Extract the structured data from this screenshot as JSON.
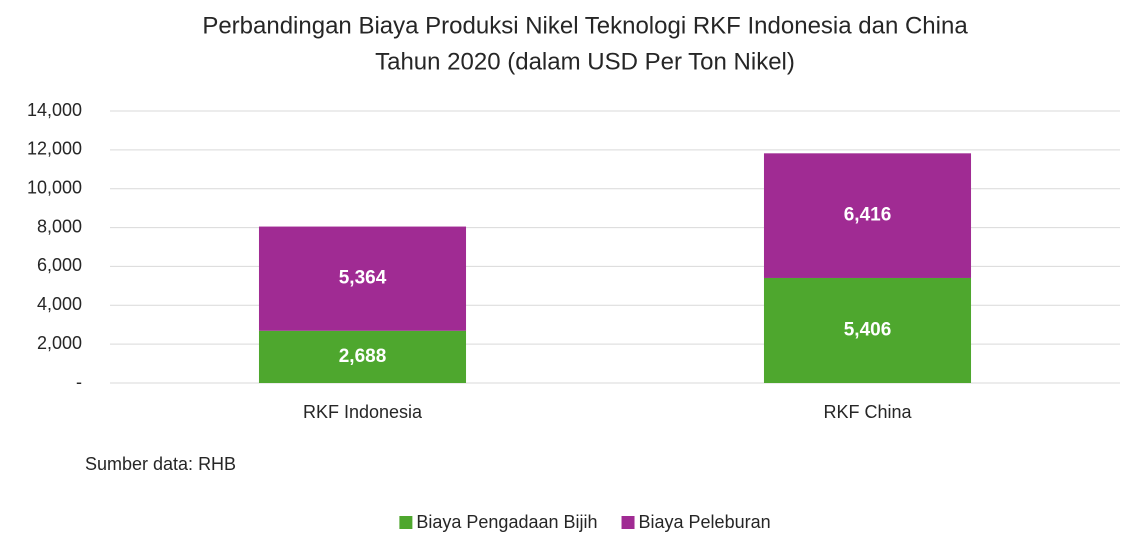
{
  "chart_data": {
    "type": "stacked_bar",
    "title": [
      "Perbandingan Biaya Produksi Nikel Teknologi RKF Indonesia dan China",
      "Tahun 2020 (dalam USD Per Ton Nikel)"
    ],
    "categories": [
      "RKF Indonesia",
      "RKF China"
    ],
    "series": [
      {
        "name": "Biaya Pengadaan Bijih",
        "color": "#4ea72e",
        "values": [
          2688,
          5406
        ],
        "value_labels": [
          "2,688",
          "5,406"
        ]
      },
      {
        "name": "Biaya Peleburan",
        "color": "#a02b93",
        "values": [
          5364,
          6416
        ],
        "value_labels": [
          "5,364",
          "6,416"
        ]
      }
    ],
    "ylim": [
      0,
      14000
    ],
    "yticks": [
      {
        "value": 0,
        "label": "-"
      },
      {
        "value": 2000,
        "label": "2,000"
      },
      {
        "value": 4000,
        "label": "4,000"
      },
      {
        "value": 6000,
        "label": "6,000"
      },
      {
        "value": 8000,
        "label": "8,000"
      },
      {
        "value": 10000,
        "label": "10,000"
      },
      {
        "value": 12000,
        "label": "12,000"
      },
      {
        "value": 14000,
        "label": "14,000"
      }
    ],
    "grid": true,
    "legend": "bottom",
    "annotation": "Sumber data: RHB"
  }
}
